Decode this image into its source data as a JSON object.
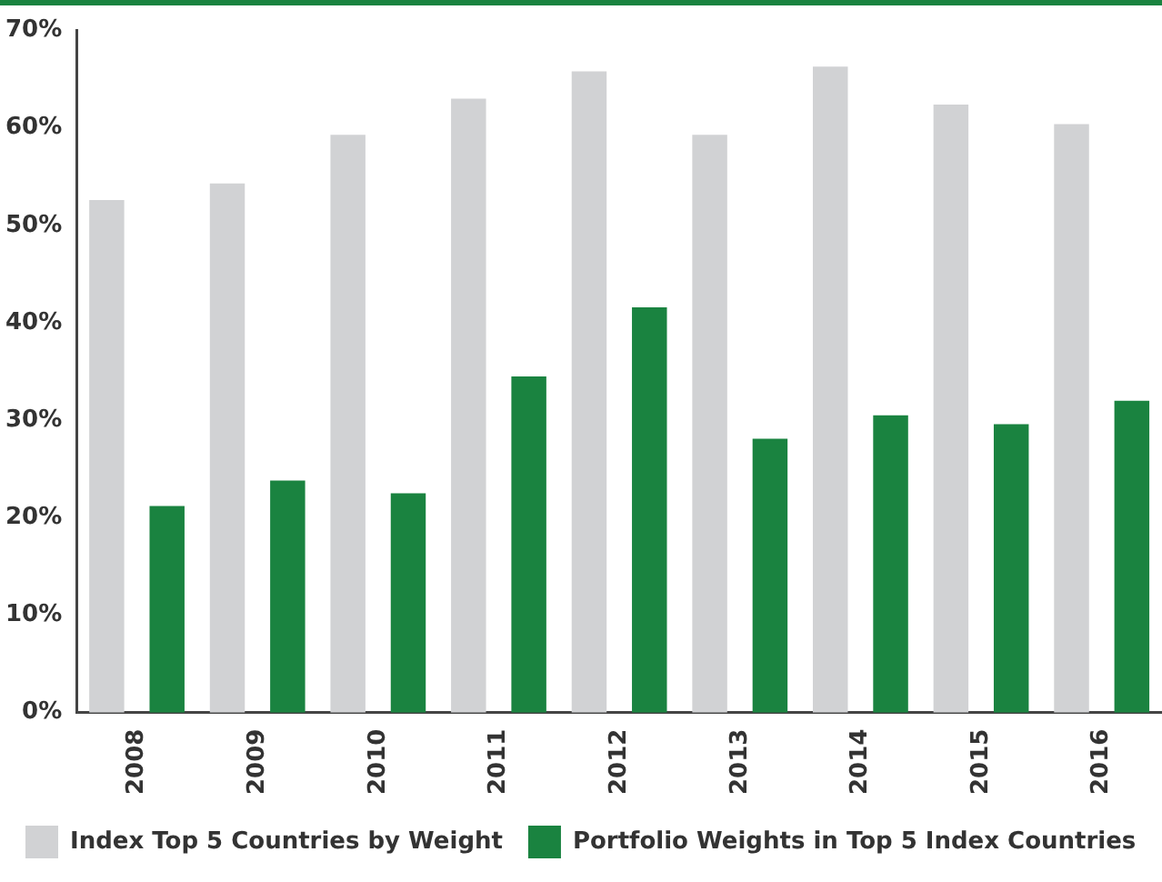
{
  "chart_data": {
    "type": "bar",
    "categories": [
      "2008",
      "2009",
      "2010",
      "2011",
      "2012",
      "2013",
      "2014",
      "2015",
      "2016"
    ],
    "series": [
      {
        "name": "Index Top 5 Countries by Weight",
        "color": "#d1d2d4",
        "values": [
          52.6,
          54.3,
          59.3,
          63.0,
          65.8,
          59.3,
          66.3,
          62.4,
          60.4
        ]
      },
      {
        "name": "Portfolio Weights in Top 5 Index Countries",
        "color": "#1a8340",
        "values": [
          21.2,
          23.8,
          22.5,
          34.5,
          41.6,
          28.1,
          30.5,
          29.6,
          32.0
        ]
      }
    ],
    "ylim": [
      0,
      70
    ],
    "yticks": [
      {
        "value": 0,
        "label": "0%"
      },
      {
        "value": 10,
        "label": "10%"
      },
      {
        "value": 20,
        "label": "20%"
      },
      {
        "value": 30,
        "label": "30%"
      },
      {
        "value": 40,
        "label": "40%"
      },
      {
        "value": 50,
        "label": "50%"
      },
      {
        "value": 60,
        "label": "60%"
      },
      {
        "value": 70,
        "label": "70%"
      }
    ],
    "grid": false,
    "legend": "bottom"
  }
}
